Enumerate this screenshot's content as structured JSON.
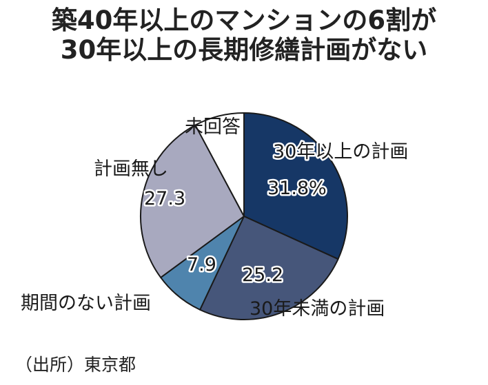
{
  "title_lines": [
    "築40年以上のマンションの6割が",
    "30年以上の長期修繕計画がない"
  ],
  "source": "（出所）東京都",
  "chart_data": {
    "type": "pie",
    "start_angle_deg": 0,
    "direction": "clockwise",
    "slices": [
      {
        "category": "30年以上の計画",
        "value": 31.8,
        "value_label": "31.8%",
        "color": "#163766"
      },
      {
        "category": "30年未満の計画",
        "value": 25.2,
        "value_label": "25.2",
        "color": "#46567a"
      },
      {
        "category": "期間のない計画",
        "value": 7.9,
        "value_label": "7.9",
        "color": "#4f84ad"
      },
      {
        "category": "計画無し",
        "value": 27.3,
        "value_label": "27.3",
        "color": "#a8a9bf"
      },
      {
        "category": "未回答",
        "value": 7.8,
        "value_label": "",
        "color": "#ffffff"
      }
    ]
  }
}
